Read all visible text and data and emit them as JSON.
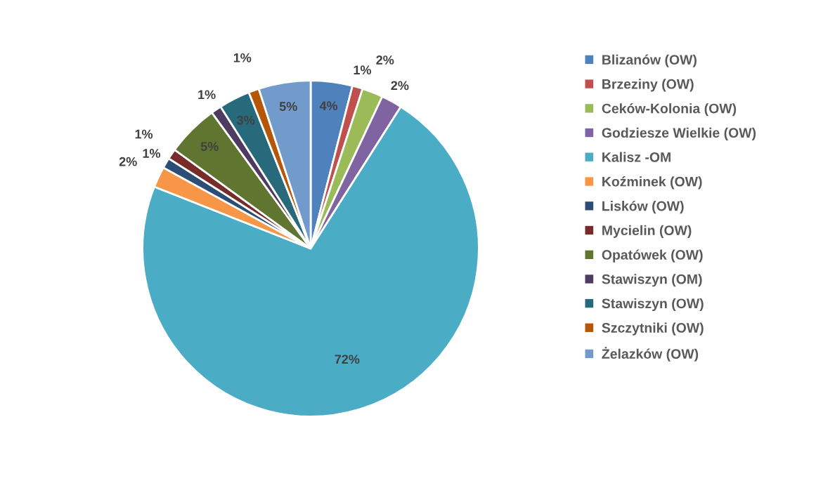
{
  "chart_data": {
    "type": "pie",
    "categories": [
      "Blizanów (OW)",
      "Brzeziny (OW)",
      "Ceków-Kolonia (OW)",
      "Godziesze Wielkie (OW)",
      "Kalisz -OM",
      "Koźminek (OW)",
      "Lisków (OW)",
      "Mycielin (OW)",
      "Opatówek (OW)",
      "Stawiszyn (OM)",
      "Stawiszyn (OW)",
      "Szczytniki (OW)",
      "Żelazków (OW)"
    ],
    "values": [
      4,
      1,
      2,
      2,
      72,
      2,
      1,
      1,
      5,
      1,
      3,
      1,
      5
    ],
    "colors": [
      "#4f81bd",
      "#c0504d",
      "#9bbb59",
      "#8064a2",
      "#4bacc6",
      "#f79646",
      "#2c4d75",
      "#772c2a",
      "#5f7530",
      "#4d3b62",
      "#276a7c",
      "#b65708",
      "#729aca"
    ],
    "value_labels": [
      "4%",
      "1%",
      "2%",
      "2%",
      "72%",
      "2%",
      "1%",
      "1%",
      "5%",
      "1%",
      "3%",
      "1%",
      "5%"
    ],
    "legend": "right"
  }
}
